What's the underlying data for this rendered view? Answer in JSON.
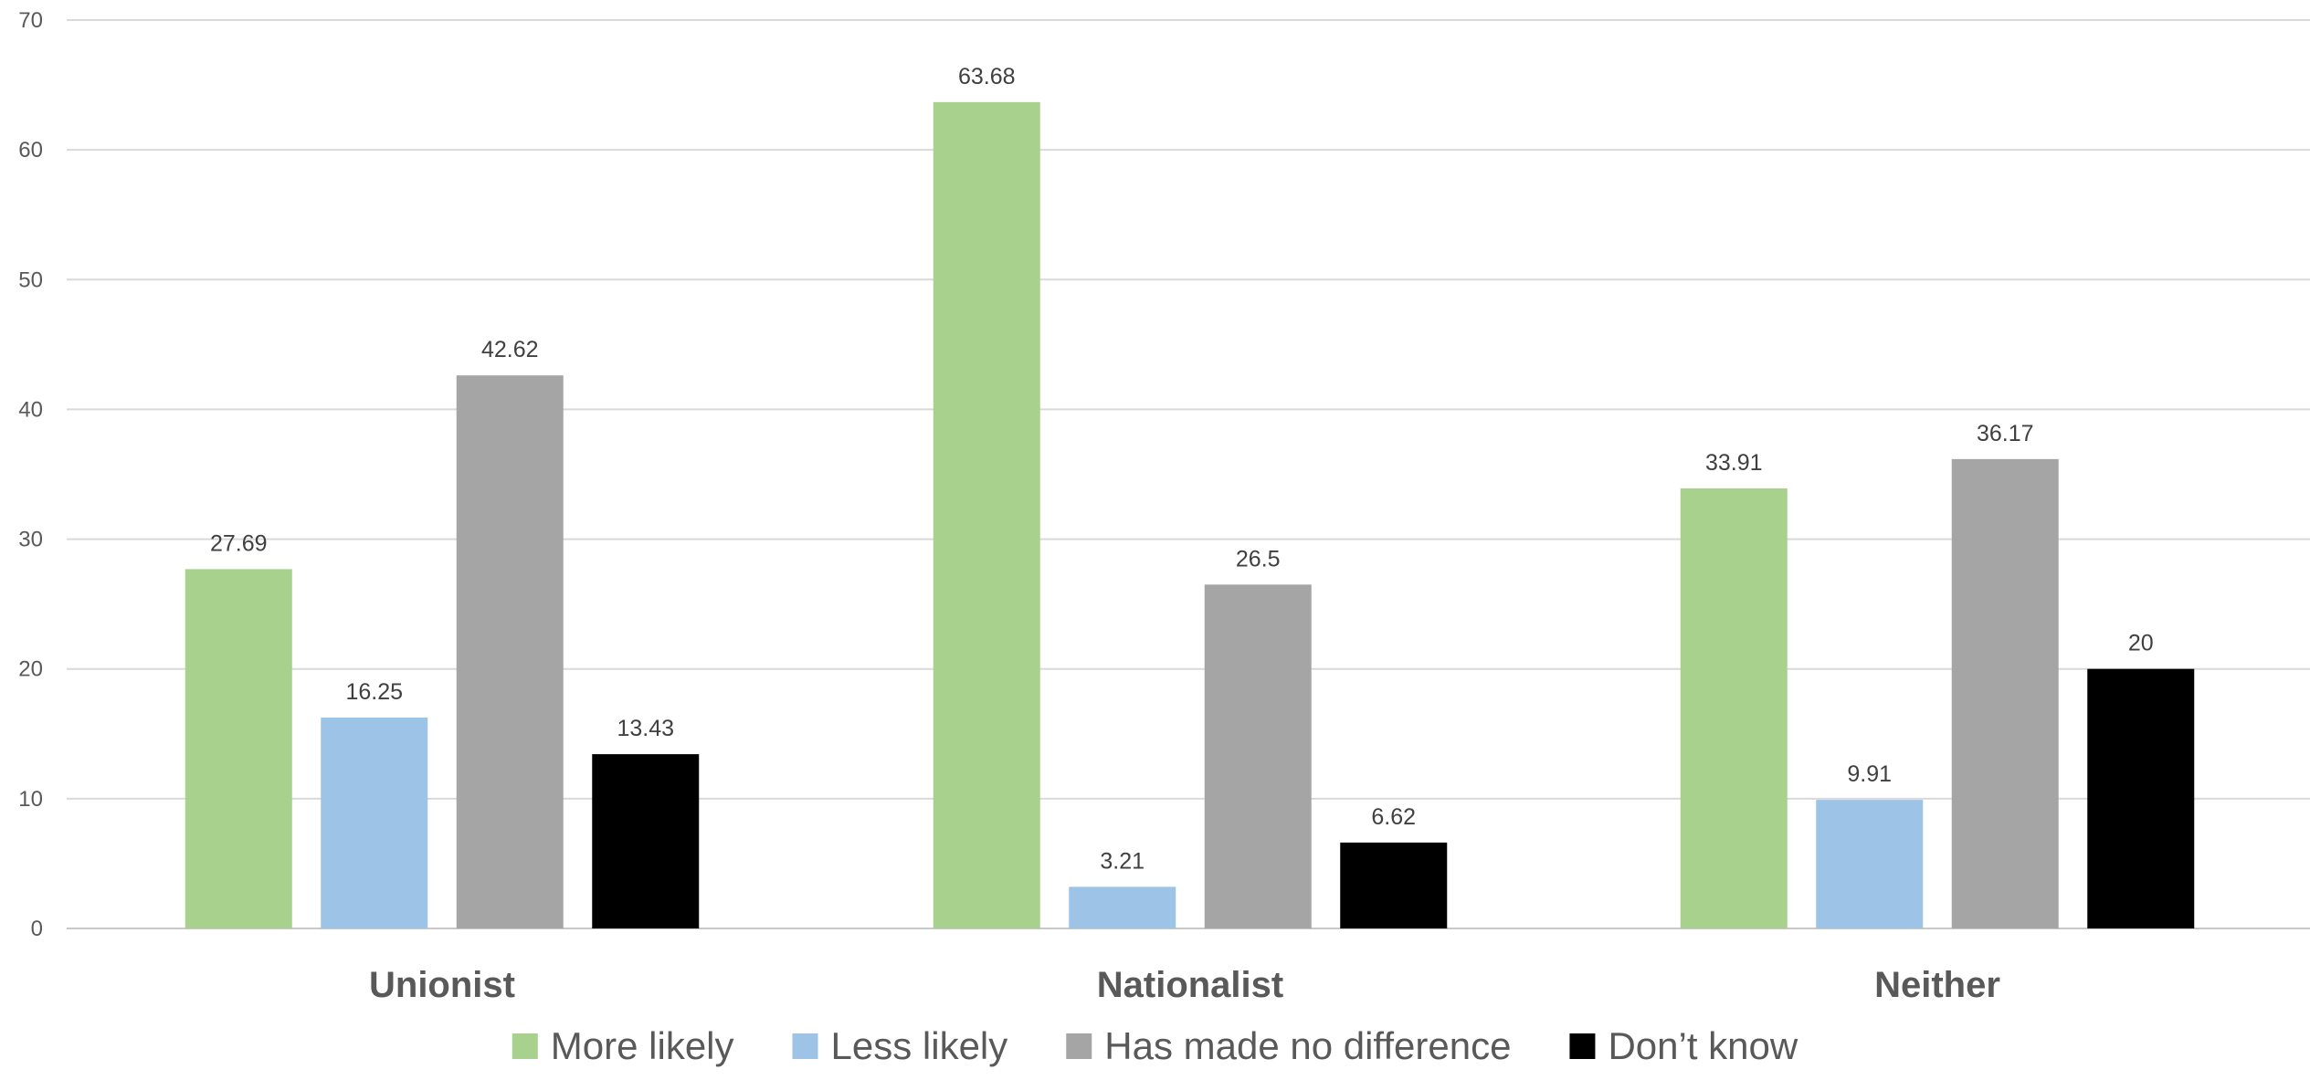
{
  "chart_data": {
    "type": "bar",
    "categories": [
      "Unionist",
      "Nationalist",
      "Neither"
    ],
    "series": [
      {
        "name": "More likely",
        "color": "#a9d18e",
        "values": [
          27.69,
          63.68,
          33.91
        ]
      },
      {
        "name": "Less likely",
        "color": "#9dc3e6",
        "values": [
          16.25,
          3.21,
          9.91
        ]
      },
      {
        "name": "Has made no difference",
        "color": "#a5a5a5",
        "values": [
          42.62,
          26.5,
          36.17
        ]
      },
      {
        "name": "Don’t know",
        "color": "#000000",
        "values": [
          13.43,
          6.62,
          20
        ]
      }
    ],
    "ylim": [
      0,
      70
    ],
    "yticks": [
      0,
      10,
      20,
      30,
      40,
      50,
      60,
      70
    ],
    "grid": true,
    "legend": "bottom",
    "data_labels": true
  }
}
